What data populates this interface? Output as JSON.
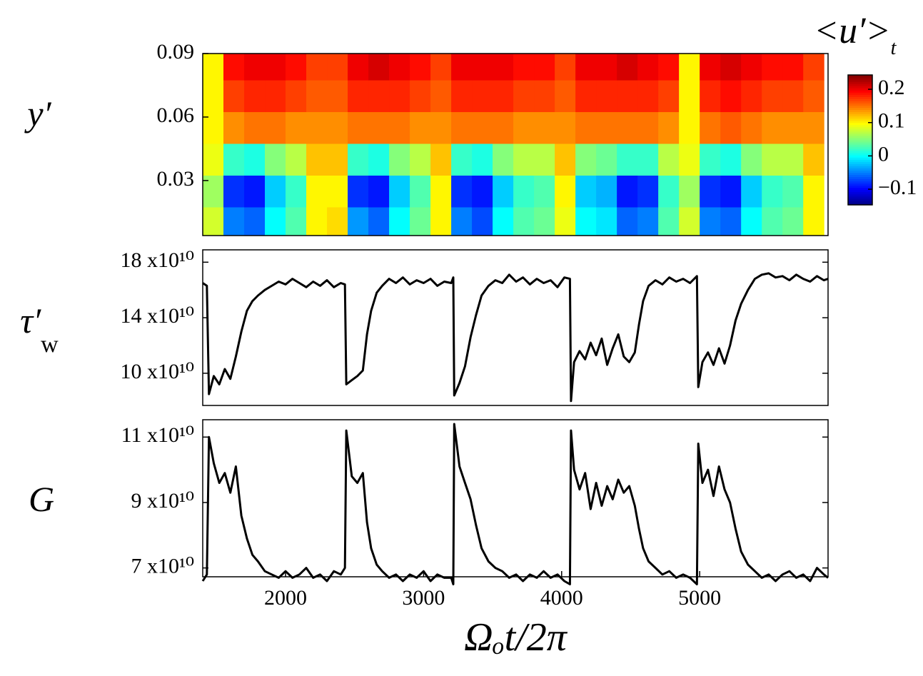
{
  "chart_data": [
    {
      "type": "heatmap",
      "ylabel": "y′",
      "colorbar_title": "<u′>",
      "colorbar_title_sub": "t",
      "colormap": "jet",
      "xlim": [
        1400,
        5930
      ],
      "ylim": [
        0.004,
        0.09
      ],
      "yticks": [
        0.03,
        0.06,
        0.09
      ],
      "clim": [
        -0.147,
        0.243
      ],
      "cticks": [
        {
          "value": -0.1,
          "label": "−0.1"
        },
        0,
        0.1,
        0.2
      ],
      "x": [
        1475,
        1625,
        1775,
        1925,
        2075,
        2225,
        2375,
        2525,
        2675,
        2825,
        2975,
        3125,
        3275,
        3425,
        3575,
        3725,
        3875,
        4025,
        4175,
        4325,
        4475,
        4625,
        4775,
        4925,
        5075,
        5225,
        5375,
        5525,
        5675,
        5825
      ],
      "y": [
        0.01,
        0.025,
        0.04,
        0.055,
        0.07,
        0.085
      ],
      "z": [
        [
          0.08,
          -0.05,
          -0.06,
          0.0,
          0.03,
          0.1,
          0.11,
          -0.04,
          -0.06,
          0.0,
          0.04,
          0.1,
          -0.05,
          -0.07,
          0.0,
          0.03,
          0.04,
          0.09,
          0.0,
          -0.01,
          -0.06,
          -0.05,
          0.03,
          0.08,
          -0.05,
          -0.06,
          0.0,
          0.03,
          0.04,
          0.1
        ],
        [
          0.06,
          -0.08,
          -0.09,
          -0.02,
          0.02,
          0.1,
          0.1,
          -0.08,
          -0.09,
          -0.02,
          0.03,
          0.1,
          -0.08,
          -0.09,
          -0.02,
          0.02,
          0.03,
          0.1,
          -0.02,
          -0.03,
          -0.09,
          -0.08,
          0.02,
          0.06,
          -0.08,
          -0.09,
          -0.02,
          0.02,
          0.03,
          0.1
        ],
        [
          0.09,
          0.02,
          0.01,
          0.05,
          0.07,
          0.12,
          0.12,
          0.02,
          0.01,
          0.05,
          0.07,
          0.12,
          0.02,
          0.01,
          0.05,
          0.07,
          0.07,
          0.12,
          0.05,
          0.04,
          0.02,
          0.02,
          0.07,
          0.09,
          0.02,
          0.01,
          0.05,
          0.07,
          0.07,
          0.12
        ],
        [
          0.1,
          0.14,
          0.15,
          0.15,
          0.14,
          0.14,
          0.14,
          0.15,
          0.15,
          0.15,
          0.14,
          0.14,
          0.15,
          0.15,
          0.15,
          0.14,
          0.14,
          0.14,
          0.15,
          0.15,
          0.15,
          0.15,
          0.14,
          0.1,
          0.15,
          0.16,
          0.15,
          0.14,
          0.14,
          0.14
        ],
        [
          0.1,
          0.17,
          0.18,
          0.18,
          0.17,
          0.16,
          0.16,
          0.18,
          0.18,
          0.18,
          0.17,
          0.16,
          0.18,
          0.18,
          0.18,
          0.17,
          0.17,
          0.16,
          0.18,
          0.18,
          0.18,
          0.18,
          0.17,
          0.1,
          0.18,
          0.19,
          0.18,
          0.17,
          0.17,
          0.16
        ],
        [
          0.1,
          0.19,
          0.2,
          0.2,
          0.19,
          0.17,
          0.17,
          0.2,
          0.21,
          0.2,
          0.19,
          0.17,
          0.2,
          0.2,
          0.2,
          0.19,
          0.19,
          0.17,
          0.2,
          0.2,
          0.21,
          0.2,
          0.19,
          0.1,
          0.2,
          0.21,
          0.2,
          0.19,
          0.19,
          0.17
        ]
      ]
    },
    {
      "type": "line",
      "ylabel": "τ′",
      "ylabel_sub": "w",
      "color": "#000000",
      "xlim": [
        1400,
        5930
      ],
      "ylim": [
        7.68,
        18.89
      ],
      "yticks": [
        {
          "value": 10,
          "label": "10 x10¹⁰"
        },
        {
          "value": 14,
          "label": "14 x10¹⁰"
        },
        {
          "value": 18,
          "label": "18 x10¹⁰"
        }
      ],
      "x": [
        1400,
        1430,
        1445,
        1480,
        1520,
        1560,
        1600,
        1640,
        1680,
        1720,
        1760,
        1800,
        1850,
        1900,
        1950,
        2000,
        2050,
        2100,
        2150,
        2200,
        2250,
        2300,
        2350,
        2400,
        2430,
        2440,
        2480,
        2520,
        2560,
        2590,
        2620,
        2660,
        2700,
        2750,
        2800,
        2850,
        2900,
        2950,
        3000,
        3050,
        3100,
        3150,
        3200,
        3215,
        3222,
        3260,
        3300,
        3340,
        3380,
        3420,
        3470,
        3520,
        3570,
        3620,
        3670,
        3720,
        3770,
        3820,
        3870,
        3920,
        3970,
        4020,
        4060,
        4068,
        4090,
        4130,
        4170,
        4210,
        4250,
        4290,
        4330,
        4370,
        4410,
        4450,
        4490,
        4530,
        4560,
        4590,
        4630,
        4680,
        4730,
        4780,
        4830,
        4880,
        4930,
        4980,
        4990,
        5020,
        5060,
        5100,
        5140,
        5180,
        5220,
        5260,
        5300,
        5350,
        5400,
        5450,
        5500,
        5550,
        5600,
        5650,
        5700,
        5750,
        5800,
        5850,
        5900,
        5930
      ],
      "values": [
        16.5,
        16.3,
        8.5,
        9.8,
        9.2,
        10.3,
        9.6,
        11.2,
        13.0,
        14.5,
        15.2,
        15.6,
        16.0,
        16.3,
        16.6,
        16.4,
        16.8,
        16.5,
        16.2,
        16.6,
        16.3,
        16.7,
        16.2,
        16.5,
        16.4,
        9.2,
        9.5,
        9.8,
        10.2,
        12.8,
        14.5,
        15.8,
        16.3,
        16.8,
        16.5,
        16.9,
        16.4,
        16.7,
        16.5,
        16.8,
        16.3,
        16.6,
        16.5,
        16.9,
        8.4,
        9.3,
        10.5,
        12.6,
        14.2,
        15.6,
        16.3,
        16.7,
        16.5,
        17.1,
        16.6,
        16.9,
        16.4,
        16.8,
        16.5,
        16.7,
        16.2,
        16.9,
        16.8,
        8.0,
        10.8,
        11.6,
        11.0,
        12.2,
        11.3,
        12.5,
        10.6,
        11.8,
        12.8,
        11.2,
        10.8,
        11.5,
        13.5,
        15.2,
        16.3,
        16.7,
        16.4,
        16.9,
        16.6,
        16.8,
        16.5,
        17.0,
        9.0,
        10.8,
        11.5,
        10.6,
        11.8,
        10.7,
        12.0,
        13.8,
        15.0,
        16.0,
        16.8,
        17.1,
        17.2,
        16.9,
        17.0,
        16.7,
        17.1,
        16.8,
        16.6,
        17.0,
        16.7,
        16.8
      ]
    },
    {
      "type": "line",
      "ylabel": "G",
      "xlabel": "Ωₒt/2π",
      "color": "#000000",
      "xlim": [
        1400,
        5930
      ],
      "xticks": [
        2000,
        3000,
        4000,
        5000
      ],
      "ylim": [
        6.73,
        11.53
      ],
      "yticks": [
        {
          "value": 7,
          "label": "7 x10¹⁰"
        },
        {
          "value": 9,
          "label": "9 x10¹⁰"
        },
        {
          "value": 11,
          "label": "11 x10¹⁰"
        }
      ],
      "x": [
        1400,
        1430,
        1445,
        1480,
        1520,
        1560,
        1600,
        1640,
        1680,
        1720,
        1760,
        1800,
        1850,
        1900,
        1950,
        2000,
        2050,
        2100,
        2150,
        2200,
        2250,
        2300,
        2350,
        2400,
        2430,
        2440,
        2480,
        2520,
        2560,
        2590,
        2620,
        2660,
        2700,
        2750,
        2800,
        2850,
        2900,
        2950,
        3000,
        3050,
        3100,
        3150,
        3200,
        3215,
        3222,
        3260,
        3300,
        3340,
        3380,
        3420,
        3470,
        3520,
        3570,
        3620,
        3670,
        3720,
        3770,
        3820,
        3870,
        3920,
        3970,
        4020,
        4060,
        4068,
        4090,
        4130,
        4170,
        4210,
        4250,
        4290,
        4330,
        4370,
        4410,
        4450,
        4490,
        4530,
        4560,
        4590,
        4630,
        4680,
        4730,
        4780,
        4830,
        4880,
        4930,
        4980,
        4990,
        5020,
        5060,
        5100,
        5140,
        5180,
        5220,
        5260,
        5300,
        5350,
        5400,
        5450,
        5500,
        5550,
        5600,
        5650,
        5700,
        5750,
        5800,
        5850,
        5900,
        5930
      ],
      "values": [
        6.6,
        6.8,
        11.0,
        10.2,
        9.6,
        9.9,
        9.3,
        10.1,
        8.6,
        7.9,
        7.4,
        7.2,
        6.9,
        6.8,
        6.7,
        6.9,
        6.7,
        6.8,
        7.0,
        6.7,
        6.8,
        6.6,
        6.9,
        6.8,
        7.0,
        11.2,
        9.8,
        9.6,
        9.9,
        8.4,
        7.6,
        7.1,
        6.9,
        6.7,
        6.8,
        6.6,
        6.8,
        6.7,
        6.9,
        6.6,
        6.8,
        6.7,
        6.7,
        6.5,
        11.4,
        10.1,
        9.6,
        9.1,
        8.3,
        7.6,
        7.2,
        7.0,
        6.9,
        6.7,
        6.8,
        6.6,
        6.8,
        6.7,
        6.9,
        6.7,
        6.8,
        6.6,
        6.5,
        11.2,
        10.0,
        9.4,
        9.9,
        8.8,
        9.6,
        8.9,
        9.5,
        9.1,
        9.7,
        9.3,
        9.5,
        8.9,
        8.2,
        7.6,
        7.2,
        7.0,
        6.8,
        6.9,
        6.7,
        6.8,
        6.7,
        6.5,
        10.8,
        9.6,
        10.0,
        9.2,
        10.1,
        9.4,
        9.0,
        8.2,
        7.5,
        7.1,
        6.9,
        6.7,
        6.8,
        6.6,
        6.8,
        6.9,
        6.7,
        6.8,
        6.6,
        7.0,
        6.8,
        6.7
      ]
    }
  ]
}
